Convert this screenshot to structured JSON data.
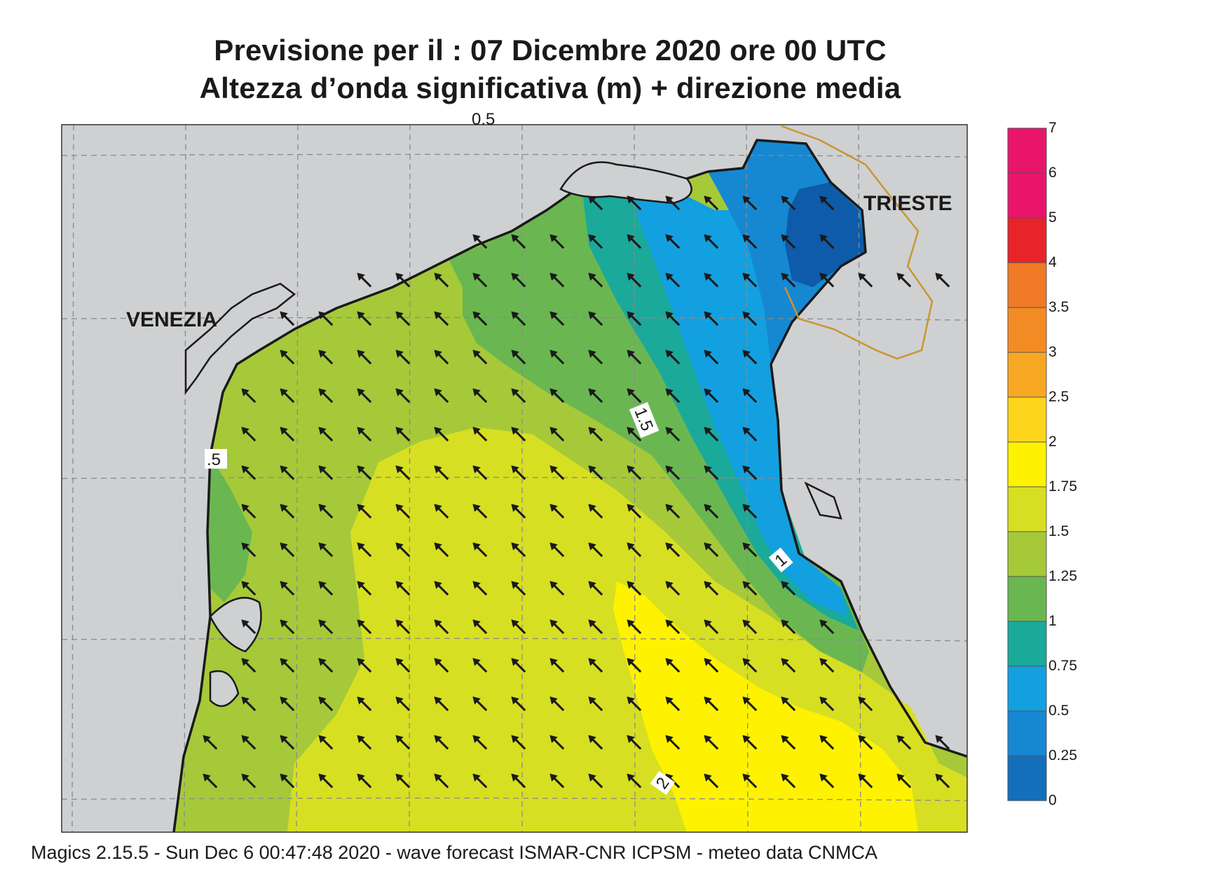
{
  "header": {
    "title_line1": "Previsione per il  :  07 Dicembre  2020   ore 00 UTC",
    "title_line2": "Altezza d’onda significativa (m) + direzione media"
  },
  "map": {
    "cities": [
      {
        "name": "VENEZIA"
      },
      {
        "name": "TRIESTE"
      }
    ],
    "contour_labels": [
      ".5",
      "1.5",
      "1",
      "2",
      "0.5"
    ],
    "arrow_direction": "north-west"
  },
  "legend": {
    "levels": [
      {
        "label": "7",
        "color": "#e8156b"
      },
      {
        "label": "6",
        "color": "#e8156b"
      },
      {
        "label": "5",
        "color": "#e8232a"
      },
      {
        "label": "4",
        "color": "#f07a26"
      },
      {
        "label": "3.5",
        "color": "#f48c25"
      },
      {
        "label": "3",
        "color": "#f7a823"
      },
      {
        "label": "2.5",
        "color": "#fdd51d"
      },
      {
        "label": "2",
        "color": "#fff200"
      },
      {
        "label": "1.75",
        "color": "#d7df23"
      },
      {
        "label": "1.5",
        "color": "#a6c939"
      },
      {
        "label": "1.25",
        "color": "#6ab751"
      },
      {
        "label": "1",
        "color": "#1ba99a"
      },
      {
        "label": "0.75",
        "color": "#13a0e0"
      },
      {
        "label": "0.5",
        "color": "#1688d2"
      },
      {
        "label": "0.25",
        "color": "#136fbb"
      },
      {
        "label": "0",
        "color": "#0e5ba9"
      }
    ]
  },
  "footer": {
    "text": "Magics 2.15.5 - Sun Dec  6 00:47:48 2020 - wave forecast  ISMAR-CNR  ICPSM - meteo data   CNMCA"
  }
}
